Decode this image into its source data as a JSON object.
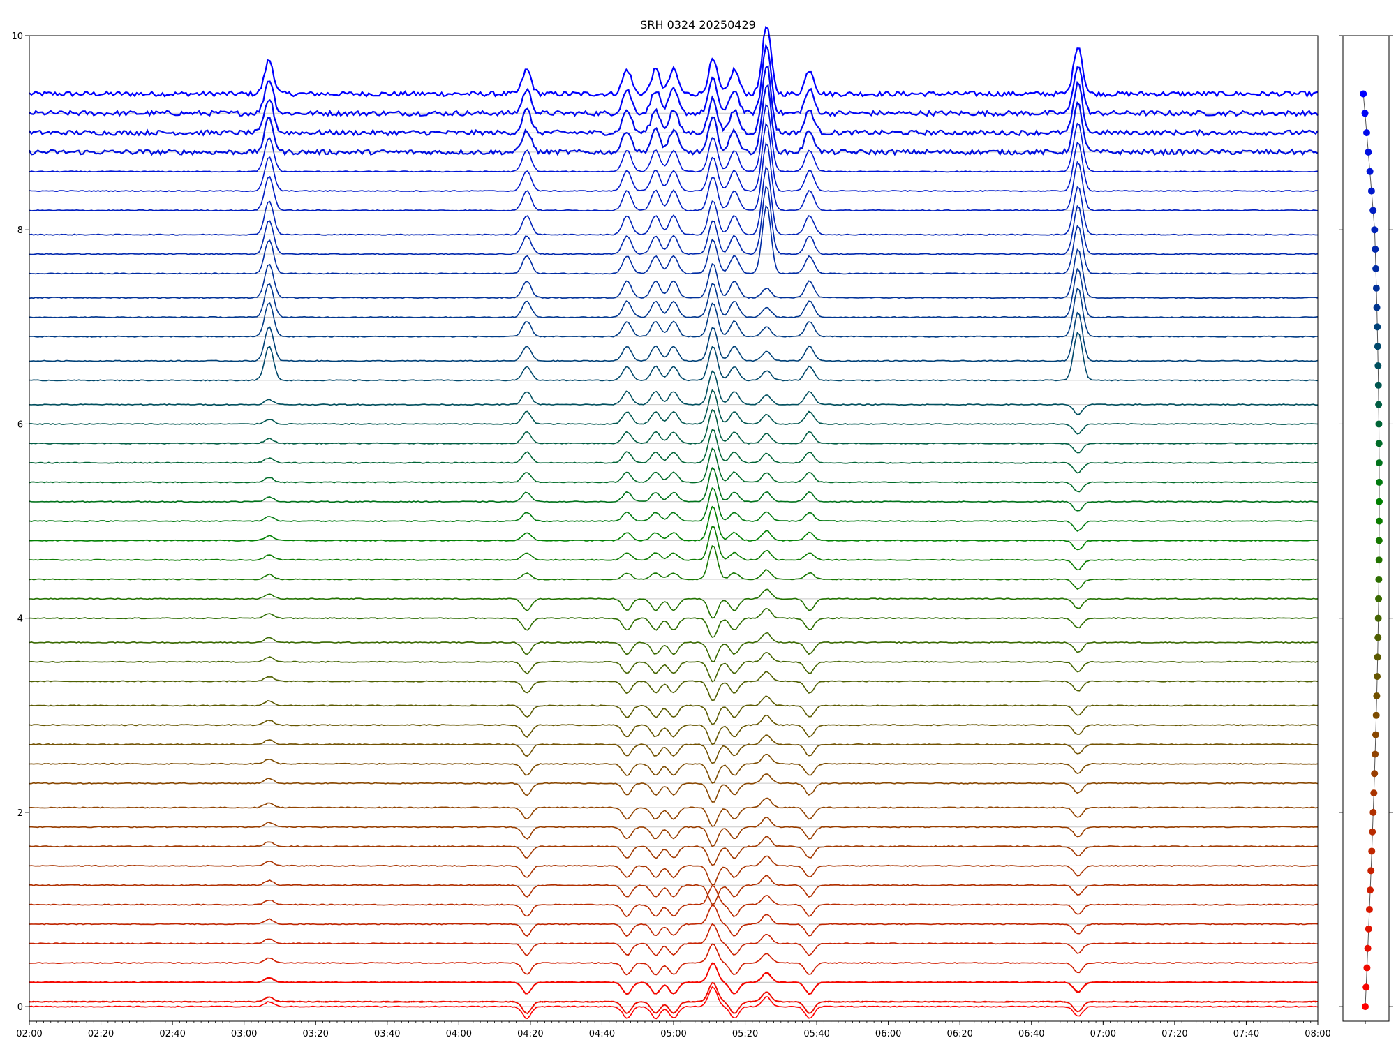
{
  "chart_data": [
    {
      "type": "line",
      "title": "SRH 0324 20250429",
      "xlabel": "",
      "ylabel": "",
      "x_range": [
        "02:00",
        "08:00"
      ],
      "x_ticks": [
        "02:00",
        "02:20",
        "02:40",
        "03:00",
        "03:20",
        "03:40",
        "04:00",
        "04:20",
        "04:40",
        "05:00",
        "05:20",
        "05:40",
        "06:00",
        "06:20",
        "06:40",
        "07:00",
        "07:20",
        "07:40",
        "08:00"
      ],
      "ylim": [
        -0.15,
        10
      ],
      "y_ticks": [
        0,
        2,
        4,
        6,
        8,
        10
      ],
      "grid": "horizontal lines at each trace baseline",
      "legend": "none",
      "series_count": 50,
      "series_baselines": [
        9.4,
        9.2,
        9.0,
        8.8,
        8.6,
        8.4,
        8.2,
        7.95,
        7.75,
        7.55,
        7.3,
        7.1,
        6.9,
        6.65,
        6.45,
        6.2,
        6.0,
        5.8,
        5.6,
        5.4,
        5.2,
        5.0,
        4.8,
        4.6,
        4.4,
        4.2,
        4.0,
        3.75,
        3.55,
        3.35,
        3.1,
        2.9,
        2.7,
        2.5,
        2.3,
        2.05,
        1.85,
        1.65,
        1.45,
        1.25,
        1.05,
        0.85,
        0.65,
        0.45,
        0.25,
        0.05,
        0.25,
        0.05,
        0.25,
        0.0
      ],
      "color_gradient": {
        "top": "#0000ff",
        "middle": "#008000",
        "bottom": "#ff0000"
      },
      "events": [
        {
          "time": "03:07",
          "label": "peak"
        },
        {
          "time": "04:19",
          "label": "peak"
        },
        {
          "time": "04:47",
          "label": "peak"
        },
        {
          "time": "04:55",
          "label": "peak"
        },
        {
          "time": "05:00",
          "label": "peak"
        },
        {
          "time": "05:11",
          "label": "dip/peak"
        },
        {
          "time": "05:17",
          "label": "peak"
        },
        {
          "time": "05:26",
          "label": "peak"
        },
        {
          "time": "05:38",
          "label": "peak"
        },
        {
          "time": "06:53",
          "label": "peak"
        }
      ]
    },
    {
      "type": "scatter",
      "title": "",
      "ylim": [
        -0.15,
        10
      ],
      "points_count": 48,
      "x_profile": "markers drift slightly right toward upper-middle, then return left at top",
      "colors": "gradient red (bottom) to blue (top), matching trace colors"
    }
  ]
}
